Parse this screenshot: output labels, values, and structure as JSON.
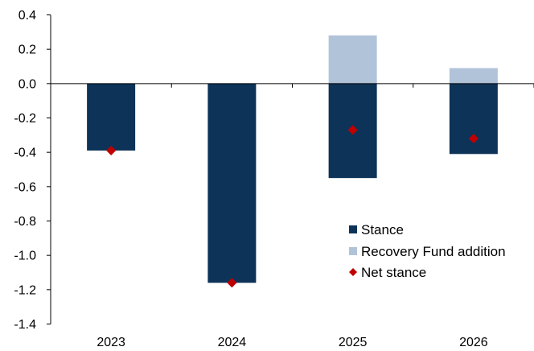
{
  "chart_data": {
    "type": "bar",
    "categories": [
      "2023",
      "2024",
      "2025",
      "2026"
    ],
    "series": [
      {
        "name": "Stance",
        "kind": "bar",
        "color": "#0d3358",
        "values": [
          -0.39,
          -1.16,
          -0.55,
          -0.41
        ]
      },
      {
        "name": "Recovery Fund addition",
        "kind": "bar",
        "color": "#b1c3d9",
        "values": [
          0.0,
          0.0,
          0.28,
          0.09
        ]
      },
      {
        "name": "Net stance",
        "kind": "marker",
        "marker": "diamond",
        "color": "#c00000",
        "values": [
          -0.39,
          -1.16,
          -0.27,
          -0.32
        ]
      }
    ],
    "ylim": [
      -1.4,
      0.4
    ],
    "yticks": [
      "0.4",
      "0.2",
      "0.0",
      "-0.2",
      "-0.4",
      "-0.6",
      "-0.8",
      "-1.0",
      "-1.2",
      "-1.4"
    ],
    "ytick_values": [
      0.4,
      0.2,
      0.0,
      -0.2,
      -0.4,
      -0.6,
      -0.8,
      -1.0,
      -1.2,
      -1.4
    ],
    "grid": false,
    "legend_position": "bottom-right",
    "title": "",
    "xlabel": "",
    "ylabel": ""
  }
}
